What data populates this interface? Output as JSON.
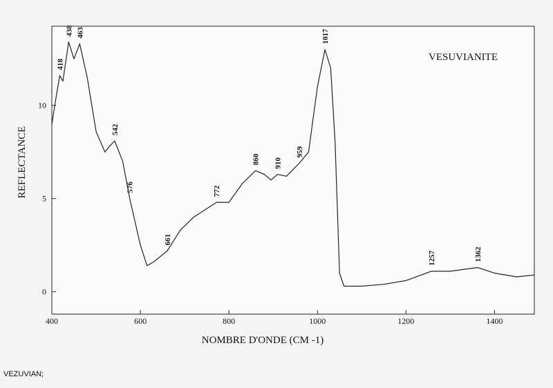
{
  "caption": "VEZUVIAN;",
  "chart_data": {
    "type": "line",
    "title": "VESUVIANITE",
    "x_label": "NOMBRE D'ONDE (CM -1)",
    "y_label": "REFLECTANCE",
    "x": [
      400,
      410,
      418,
      425,
      438,
      450,
      463,
      480,
      500,
      520,
      530,
      542,
      560,
      576,
      600,
      615,
      630,
      661,
      690,
      720,
      772,
      800,
      830,
      860,
      880,
      895,
      910,
      930,
      959,
      980,
      1000,
      1017,
      1030,
      1040,
      1050,
      1060,
      1100,
      1150,
      1200,
      1257,
      1300,
      1362,
      1400,
      1450,
      1490
    ],
    "series": [
      {
        "name": "VESUVIANITE",
        "color": "#222222",
        "values": [
          9.0,
          10.5,
          11.6,
          11.3,
          13.4,
          12.5,
          13.3,
          11.5,
          8.6,
          7.5,
          7.8,
          8.1,
          7.0,
          5.0,
          2.5,
          1.4,
          1.6,
          2.2,
          3.3,
          4.0,
          4.8,
          4.8,
          5.8,
          6.5,
          6.3,
          6.0,
          6.3,
          6.2,
          6.9,
          7.5,
          11.0,
          13.0,
          12.0,
          8.0,
          1.0,
          0.3,
          0.3,
          0.4,
          0.6,
          1.1,
          1.1,
          1.3,
          1.0,
          0.8,
          0.9
        ]
      }
    ],
    "peaks": [
      418,
      438,
      463,
      542,
      576,
      661,
      772,
      860,
      910,
      959,
      1017,
      1257,
      1362
    ],
    "xlim": [
      400,
      1490
    ],
    "ylim": [
      -1.2,
      14.25
    ],
    "xticks": [
      400,
      600,
      800,
      1000,
      1200,
      1400
    ],
    "yticks": [
      0,
      5,
      10
    ]
  }
}
